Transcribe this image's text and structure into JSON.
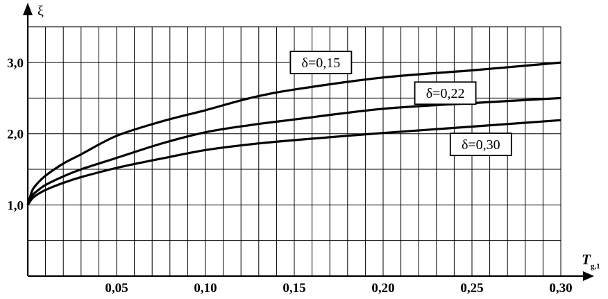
{
  "chart_data": {
    "type": "line",
    "title": "",
    "xlabel": "T",
    "xlabel_sub": "g,1",
    "ylabel": "ξ",
    "xlim": [
      0,
      0.3
    ],
    "ylim": [
      0.0,
      3.5
    ],
    "x_ticks": [
      "0,05",
      "0,10",
      "0,15",
      "0,20",
      "0,25",
      "0,30"
    ],
    "y_ticks": [
      "1,0",
      "2,0",
      "3,0"
    ],
    "x_tick_values": [
      0.05,
      0.1,
      0.15,
      0.2,
      0.25,
      0.3
    ],
    "y_tick_values": [
      1.0,
      2.0,
      3.0
    ],
    "grid": true,
    "series": [
      {
        "name": "δ=0,15",
        "x": [
          0,
          0.0025,
          0.005,
          0.01,
          0.02,
          0.03,
          0.05,
          0.075,
          0.1,
          0.125,
          0.15,
          0.2,
          0.25,
          0.3
        ],
        "values": [
          1.0,
          1.2,
          1.29,
          1.41,
          1.58,
          1.71,
          1.97,
          2.17,
          2.33,
          2.5,
          2.62,
          2.79,
          2.89,
          3.0
        ]
      },
      {
        "name": "δ=0,22",
        "x": [
          0,
          0.0025,
          0.005,
          0.01,
          0.02,
          0.03,
          0.05,
          0.075,
          0.1,
          0.125,
          0.15,
          0.2,
          0.25,
          0.3
        ],
        "values": [
          1.0,
          1.13,
          1.19,
          1.28,
          1.4,
          1.5,
          1.66,
          1.86,
          2.02,
          2.12,
          2.2,
          2.35,
          2.43,
          2.5
        ]
      },
      {
        "name": "δ=0,30",
        "x": [
          0,
          0.0025,
          0.005,
          0.01,
          0.02,
          0.03,
          0.05,
          0.075,
          0.1,
          0.125,
          0.15,
          0.2,
          0.25,
          0.3
        ],
        "values": [
          1.0,
          1.09,
          1.14,
          1.21,
          1.31,
          1.39,
          1.52,
          1.65,
          1.77,
          1.85,
          1.91,
          2.01,
          2.1,
          2.19
        ]
      }
    ],
    "label_anchors": [
      {
        "x": 0.165,
        "y": 3.0
      },
      {
        "x": 0.235,
        "y": 2.57
      },
      {
        "x": 0.255,
        "y": 1.85
      }
    ]
  }
}
